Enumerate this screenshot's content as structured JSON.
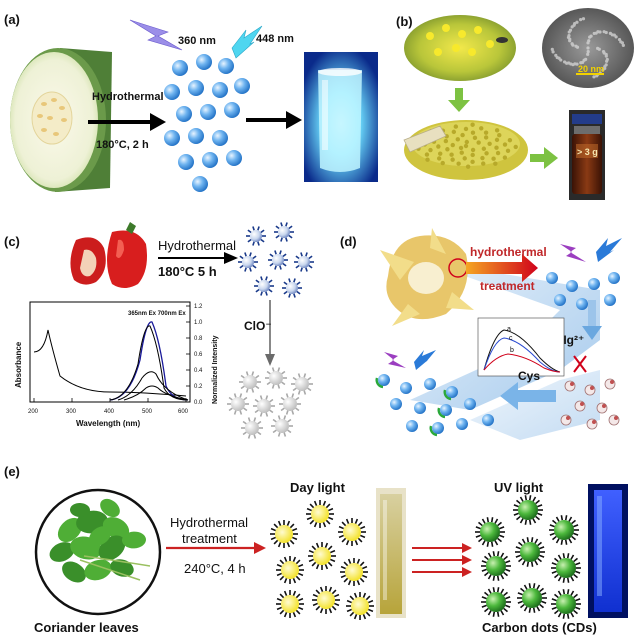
{
  "panels": {
    "a": {
      "label": "(a)",
      "step": "Hydrothermal",
      "conditions": "180°C, 2 h",
      "excitation": "360 nm",
      "emission": "448 nm",
      "colors": {
        "dot": "#3a8ee0",
        "glow": "#3fd0ff",
        "melon_skin": "#5f8d43"
      }
    },
    "b": {
      "label": "(b)",
      "scale_bar": "20 nm",
      "bottle_label": "> 3 g",
      "colors": {
        "arrow": "#7dc242",
        "pollen": "#d8d050",
        "solution": "#6b2a10"
      }
    },
    "c": {
      "label": "(c)",
      "step": "Hydrothermal",
      "conditions": "180°C   5 h",
      "quencher": "ClO⁻",
      "plot": {
        "ylabel_left": "Absorbance",
        "ylabel_right": "Normalized Intensity",
        "xlabel": "Wavelength (nm)",
        "x_ticks": [
          "200",
          "300",
          "400",
          "500",
          "600"
        ],
        "right_ticks": [
          "0.0",
          "0.2",
          "0.4",
          "0.6",
          "0.8",
          "1.0",
          "1.2"
        ],
        "legend": "365nm Ex   700nm Ex"
      },
      "colors": {
        "dot": "#1a3a8a",
        "quenched": "#b0b0b0"
      }
    },
    "d": {
      "label": "(d)",
      "step_line1": "hydrothermal",
      "step_line2": "treatment",
      "ion": "Hg²⁺",
      "amino_acid": "Cys",
      "curve_labels": [
        "a",
        "b",
        "c"
      ],
      "colors": {
        "dot": "#2f8fd8",
        "text": "#c0282a",
        "panel": "#b8d4ee"
      }
    },
    "e": {
      "label": "(e)",
      "step_line1": "Hydrothermal",
      "step_line2": "treatment",
      "conditions": "240°C, 4 h",
      "day_label": "Day light",
      "uv_label": "UV light",
      "source_caption": "Coriander leaves",
      "product_caption": "Carbon dots (CDs)",
      "colors": {
        "day_dot": "#f2e63a",
        "uv_dot": "#3aa83a",
        "arrow": "#cc2222",
        "uv_vial": "#2050ff"
      }
    }
  }
}
